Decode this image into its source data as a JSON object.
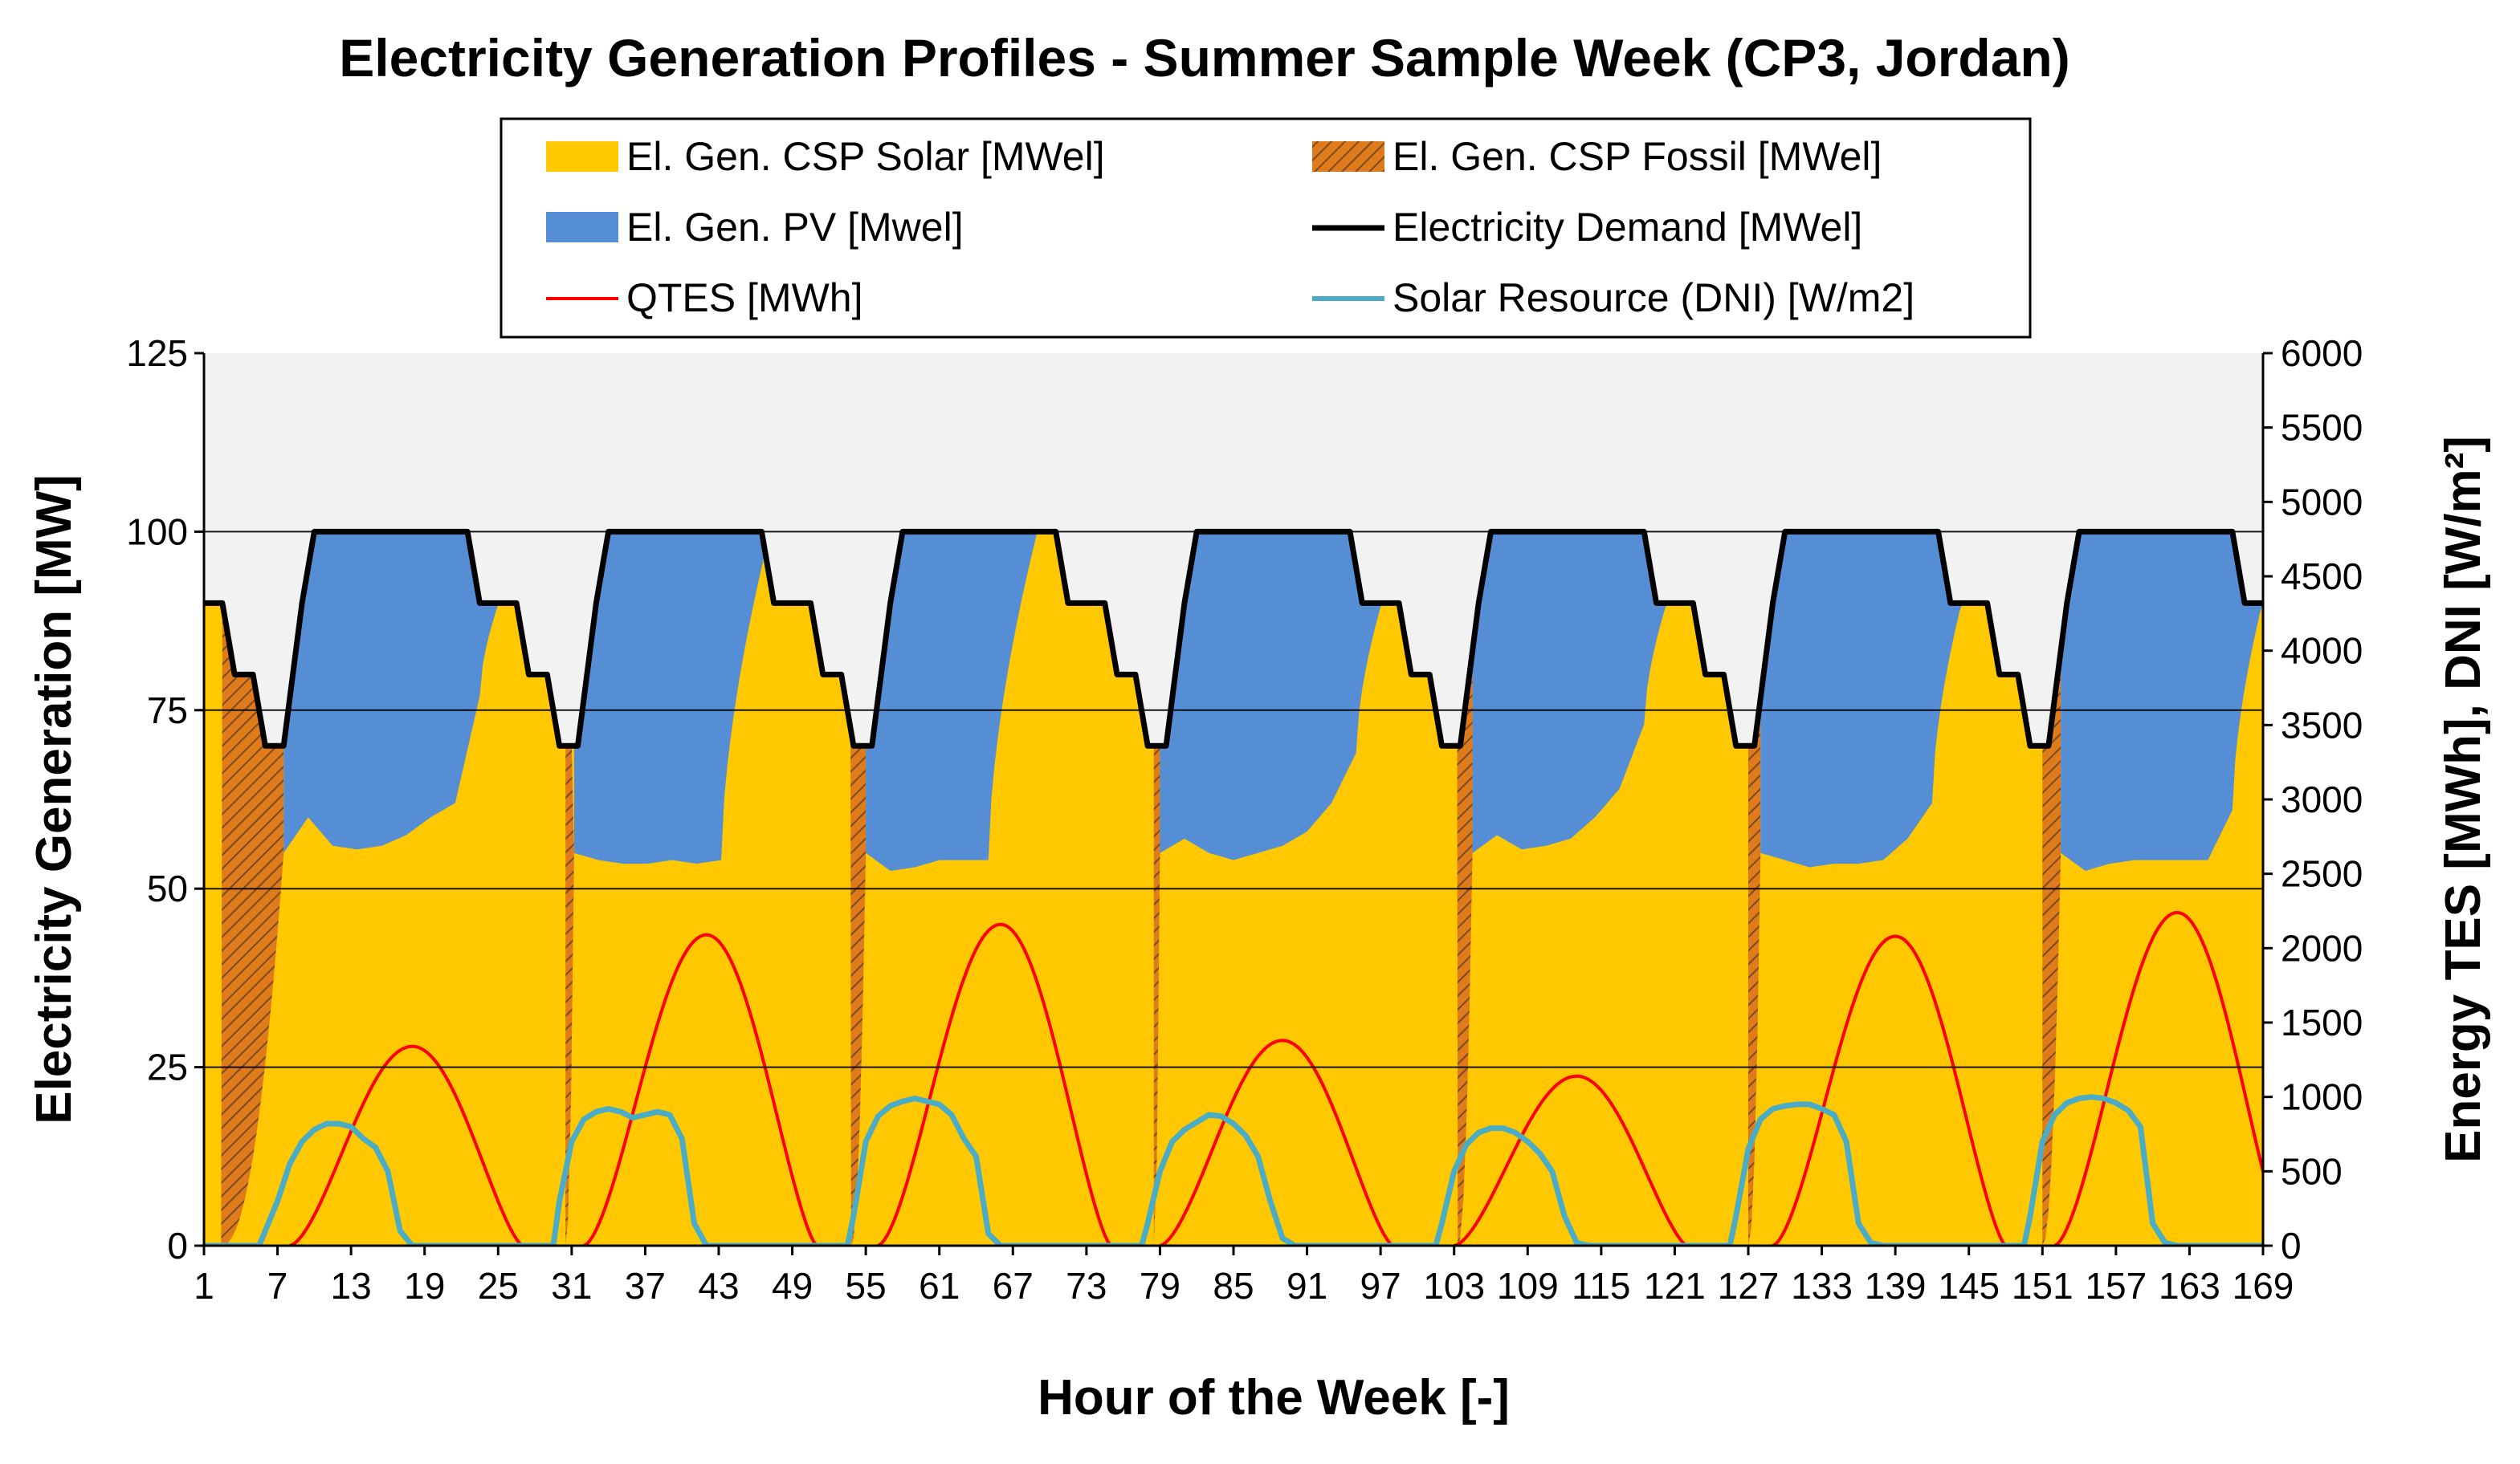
{
  "chart_data": {
    "type": "area",
    "title": "Electricity Generation Profiles - Summer Sample Week (CP3, Jordan)",
    "xlabel": "Hour of the Week [-]",
    "ylabel": "Electricity Generation [MW]",
    "y2label": "Energy TES [MWh], DNI [W/m²]",
    "xlim": [
      1,
      169
    ],
    "ylim": [
      0,
      125
    ],
    "y2lim": [
      0,
      6000
    ],
    "xticks": [
      "1",
      "7",
      "13",
      "19",
      "25",
      "31",
      "37",
      "43",
      "49",
      "55",
      "61",
      "67",
      "73",
      "79",
      "85",
      "91",
      "97",
      "103",
      "109",
      "115",
      "121",
      "127",
      "133",
      "139",
      "145",
      "151",
      "157",
      "163",
      "169"
    ],
    "yticks": [
      "0",
      "25",
      "50",
      "75",
      "100",
      "125"
    ],
    "y2ticks": [
      "0",
      "500",
      "1000",
      "1500",
      "2000",
      "2500",
      "3000",
      "3500",
      "4000",
      "4500",
      "5000",
      "5500",
      "6000"
    ],
    "legend": [
      {
        "label": "El. Gen. CSP Solar [MWel]",
        "kind": "area",
        "color": "#FFC800"
      },
      {
        "label": "El. Gen. CSP Fossil [MWel]",
        "kind": "hatch",
        "color": "#E07B1C"
      },
      {
        "label": "El. Gen. PV [Mwel]",
        "kind": "area",
        "color": "#558ED5"
      },
      {
        "label": "Electricity Demand  [MWel]",
        "kind": "line",
        "color": "#000000"
      },
      {
        "label": "QTES [MWh]",
        "kind": "line",
        "color": "#FF0000"
      },
      {
        "label": "Solar Resource (DNI) [W/m2]",
        "kind": "line",
        "color": "#31849B"
      }
    ],
    "colors": {
      "csp_solar": "#FFC800",
      "csp_fossil": "#E07B1C",
      "hatch_line": "#7A4A20",
      "pv": "#558ED5",
      "demand": "#000000",
      "qtes": "#FF0000",
      "dni": "#4BACC6",
      "plot_bg": "#F2F2F2"
    },
    "days": [
      {
        "fossil_end": 2.4,
        "solar_start": 7.5,
        "pv": [
          55,
          60,
          56,
          55.5,
          56,
          57.5,
          60,
          62,
          77
        ],
        "dni": [
          100,
          300,
          550,
          700,
          780,
          820,
          820,
          800,
          720,
          660,
          500,
          100
        ],
        "tes_peak": 1340,
        "tes_peak_hour": 18
      },
      {
        "fossil_end": 30.5,
        "solar_start": 31.2,
        "pv": [
          55,
          54,
          53.5,
          53.5,
          54,
          53.5,
          54
        ],
        "dni": [
          300,
          700,
          850,
          900,
          920,
          900,
          860,
          880,
          900,
          880,
          720,
          150
        ],
        "tes_peak": 2090,
        "tes_peak_hour": 42
      },
      {
        "fossil_end": 53.8,
        "solar_start": 55,
        "pv": [
          55,
          52.5,
          53,
          54,
          54,
          54
        ],
        "dni": [
          200,
          700,
          870,
          940,
          970,
          990,
          970,
          950,
          880,
          720,
          600,
          80
        ],
        "tes_peak": 2160,
        "tes_peak_hour": 66
      },
      {
        "fossil_end": 78.5,
        "solar_start": 79,
        "pv": [
          55,
          57,
          55,
          54,
          55,
          56,
          58,
          62,
          69
        ],
        "dni": [
          150,
          500,
          700,
          780,
          830,
          880,
          870,
          820,
          740,
          600,
          300,
          50
        ],
        "tes_peak": 1380,
        "tes_peak_hour": 89
      },
      {
        "fossil_end": 103.3,
        "solar_start": 104.5,
        "pv": [
          55,
          57.5,
          55.5,
          56,
          57,
          60,
          64,
          73
        ],
        "dni": [
          150,
          500,
          680,
          760,
          790,
          790,
          760,
          700,
          620,
          500,
          200,
          20
        ],
        "tes_peak": 1140,
        "tes_peak_hour": 113
      },
      {
        "fossil_end": 127,
        "solar_start": 128,
        "pv": [
          55,
          54,
          53,
          53.5,
          53.5,
          54,
          57,
          62
        ],
        "dni": [
          200,
          650,
          850,
          920,
          940,
          950,
          950,
          920,
          880,
          700,
          150,
          20
        ],
        "tes_peak": 2080,
        "tes_peak_hour": 139
      },
      {
        "fossil_end": 151,
        "solar_start": 152.5,
        "pv": [
          55,
          52.5,
          53.5,
          54,
          54,
          54,
          54,
          61
        ],
        "dni": [
          200,
          700,
          880,
          960,
          990,
          1000,
          990,
          960,
          910,
          800,
          150,
          20
        ],
        "tes_peak": 2240,
        "tes_peak_hour": 162
      }
    ]
  }
}
